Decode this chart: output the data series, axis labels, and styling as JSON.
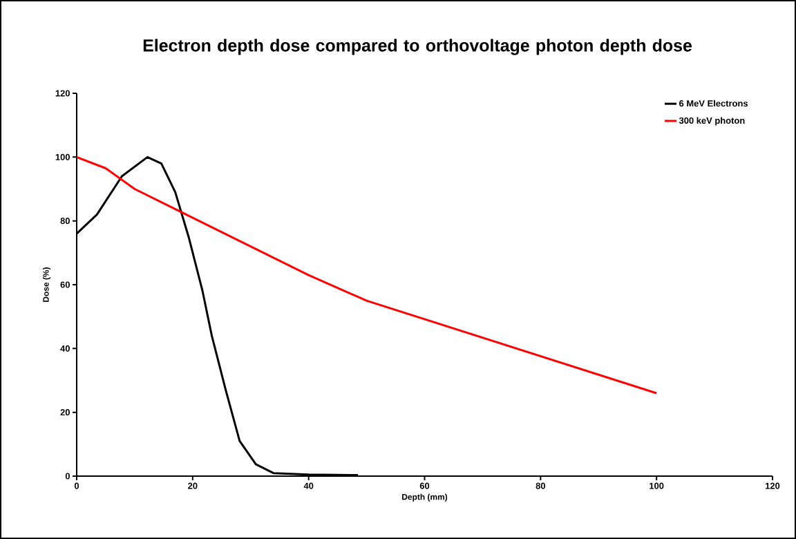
{
  "chart_data": {
    "type": "line",
    "title": "Electron depth dose compared to orthovoltage photon depth dose",
    "xlabel": "Depth (mm)",
    "ylabel": "Dose (%)",
    "xlim": [
      0,
      120
    ],
    "xticks": [
      0,
      20,
      40,
      60,
      80,
      100,
      120
    ],
    "ylim": [
      0,
      120
    ],
    "yticks": [
      0,
      20,
      40,
      60,
      80,
      100,
      120
    ],
    "grid": false,
    "legend": "top right",
    "marker": "none",
    "line_style": "solid",
    "series": [
      {
        "name": "6 MeV Electrons",
        "color": "#000000",
        "x": [
          0,
          3.5,
          7.8,
          12.2,
          14.6,
          17,
          19.3,
          21.7,
          23.3,
          25.7,
          28.1,
          30.9,
          34,
          40,
          48.5
        ],
        "values": [
          76,
          82,
          94,
          100,
          98,
          89,
          75,
          58,
          44,
          27,
          11,
          3.7,
          0.9,
          0.5,
          0.3
        ]
      },
      {
        "name": "300 keV photon",
        "color": "#ff0000",
        "x": [
          0,
          5,
          10,
          20,
          30,
          40,
          50,
          100
        ],
        "values": [
          100,
          96.5,
          90,
          81,
          72,
          63,
          55,
          26
        ]
      }
    ]
  }
}
